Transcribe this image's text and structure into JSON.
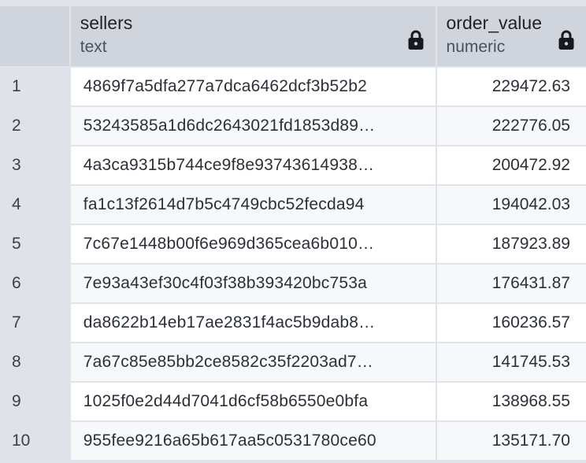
{
  "columns": [
    {
      "name": "sellers",
      "type": "text",
      "locked": true,
      "icon": "lock-icon"
    },
    {
      "name": "order_value",
      "type": "numeric",
      "locked": true,
      "icon": "lock-icon"
    }
  ],
  "rows": [
    {
      "num": "1",
      "seller": "4869f7a5dfa277a7dca6462dcf3b52b2",
      "order_value": "229472.63"
    },
    {
      "num": "2",
      "seller": "53243585a1d6dc2643021fd1853d89…",
      "order_value": "222776.05"
    },
    {
      "num": "3",
      "seller": "4a3ca9315b744ce9f8e93743614938…",
      "order_value": "200472.92"
    },
    {
      "num": "4",
      "seller": "fa1c13f2614d7b5c4749cbc52fecda94",
      "order_value": "194042.03"
    },
    {
      "num": "5",
      "seller": "7c67e1448b00f6e969d365cea6b010…",
      "order_value": "187923.89"
    },
    {
      "num": "6",
      "seller": "7e93a43ef30c4f03f38b393420bc753a",
      "order_value": "176431.87"
    },
    {
      "num": "7",
      "seller": "da8622b14eb17ae2831f4ac5b9dab8…",
      "order_value": "160236.57"
    },
    {
      "num": "8",
      "seller": "7a67c85e85bb2ce8582c35f2203ad7…",
      "order_value": "141745.53"
    },
    {
      "num": "9",
      "seller": "1025f0e2d44d7041d6cf58b6550e0bfa",
      "order_value": "138968.55"
    },
    {
      "num": "10",
      "seller": "955fee9216a65b617aa5c0531780ce60",
      "order_value": "135171.70"
    }
  ],
  "colors": {
    "header_bg": "#cfd4dd",
    "grid_line": "#e0e3e9",
    "rownum_bg": "#dfe2e8",
    "row_bg": "#ffffff",
    "row_alt_bg": "#f7f8fa",
    "text": "#2b3038"
  }
}
